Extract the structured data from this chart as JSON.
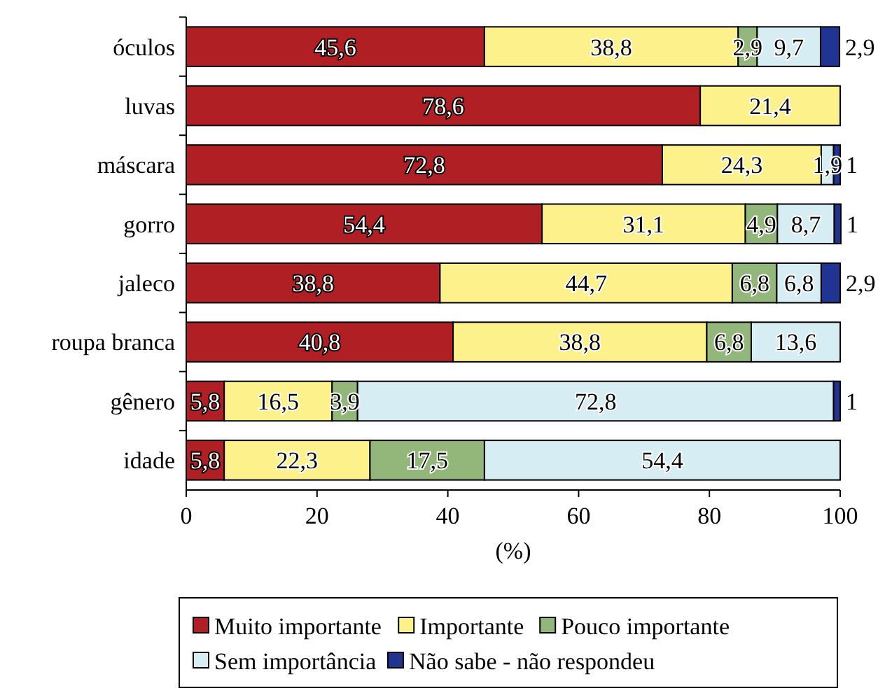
{
  "chart_data": {
    "type": "bar",
    "orientation": "horizontal",
    "stacked": true,
    "xlabel": "(%)",
    "categories": [
      "óculos",
      "luvas",
      "máscara",
      "gorro",
      "jaleco",
      "roupa branca",
      "gênero",
      "idade"
    ],
    "xlim": [
      0,
      100
    ],
    "xticks": [
      0,
      20,
      40,
      60,
      80,
      100
    ],
    "legend": "bottom",
    "grid": false,
    "series": [
      {
        "name": "Muito importante",
        "color": "#b01f24",
        "values": [
          45.6,
          78.6,
          72.8,
          54.4,
          38.8,
          40.8,
          5.8,
          5.8
        ],
        "value_labels": [
          "45,6",
          "78,6",
          "72,8",
          "54,4",
          "38,8",
          "40,8",
          "5,8",
          "5,8"
        ]
      },
      {
        "name": "Importante",
        "color": "#fdf18b",
        "values": [
          38.8,
          21.4,
          24.3,
          31.1,
          44.7,
          38.8,
          16.5,
          22.3
        ],
        "value_labels": [
          "38,8",
          "21,4",
          "24,3",
          "31,1",
          "44,7",
          "38,8",
          "16,5",
          "22,3"
        ]
      },
      {
        "name": "Pouco importante",
        "color": "#93b77a",
        "values": [
          2.9,
          null,
          null,
          4.9,
          6.8,
          6.8,
          3.9,
          17.5
        ],
        "value_labels": [
          "2,9",
          null,
          null,
          "4,9",
          "6,8",
          "6,8",
          "3,9",
          "17,5"
        ]
      },
      {
        "name": "Sem importância",
        "color": "#d6edf4",
        "values": [
          9.7,
          null,
          1.9,
          8.7,
          6.8,
          13.6,
          72.8,
          54.4
        ],
        "value_labels": [
          "9,7",
          null,
          "1,9",
          "8,7",
          "6,8",
          "13,6",
          "72,8",
          "54,4"
        ]
      },
      {
        "name": "Não sabe - não respondeu",
        "color": "#1f3591",
        "values": [
          2.9,
          null,
          1,
          1,
          2.9,
          null,
          1,
          null
        ],
        "value_labels": [
          "2,9",
          null,
          "1",
          "1",
          "2,9",
          null,
          "1",
          null
        ]
      }
    ]
  }
}
